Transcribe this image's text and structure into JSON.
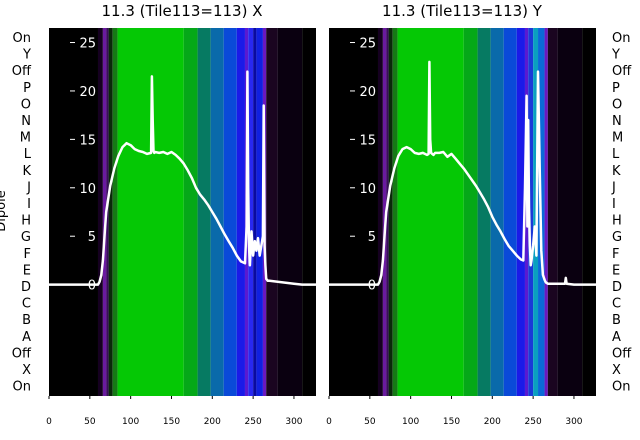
{
  "chart_data": [
    {
      "type": "heatmap",
      "title": "11.3 (Tile113=113) X",
      "ylabel": "Dipole",
      "x_ticks": [
        0,
        50,
        100,
        150,
        200,
        250,
        300
      ],
      "xlim": [
        0,
        327
      ],
      "rows": [
        "On",
        "X",
        "Off",
        "A",
        "B",
        "C",
        "D",
        "E",
        "F",
        "G",
        "H",
        "I",
        "J",
        "K",
        "L",
        "M",
        "N",
        "O",
        "P",
        "Off",
        "Y",
        "On"
      ],
      "overlay": {
        "type": "line",
        "ylim": [
          -11.5,
          26.5
        ],
        "y_ticks": [
          0,
          5,
          10,
          15,
          20,
          25
        ],
        "x": [
          0,
          60,
          62,
          64,
          66,
          68,
          70,
          75,
          80,
          85,
          90,
          95,
          100,
          105,
          110,
          115,
          120,
          125,
          126,
          127,
          128,
          129,
          130,
          135,
          140,
          145,
          150,
          155,
          160,
          165,
          170,
          175,
          180,
          185,
          190,
          195,
          200,
          205,
          210,
          215,
          220,
          225,
          230,
          235,
          240,
          242,
          243,
          244,
          245,
          246,
          248,
          250,
          252,
          254,
          256,
          258,
          260,
          262,
          263,
          264,
          265,
          266,
          268,
          270,
          280,
          290,
          300,
          310,
          327
        ],
        "y": [
          0,
          0,
          0.3,
          1.0,
          2.5,
          5.0,
          7.5,
          10.2,
          12.0,
          13.3,
          14.2,
          14.6,
          14.4,
          14.0,
          13.8,
          13.7,
          13.5,
          13.6,
          21.5,
          17.0,
          13.8,
          13.6,
          13.7,
          13.6,
          13.7,
          13.5,
          13.7,
          13.4,
          13.0,
          12.5,
          11.8,
          11.0,
          10.0,
          9.3,
          8.8,
          8.2,
          7.5,
          6.8,
          6.0,
          5.2,
          4.5,
          3.8,
          3.0,
          2.4,
          2.2,
          6.0,
          22.0,
          10.0,
          4.0,
          2.0,
          5.5,
          3.0,
          4.5,
          3.5,
          4.8,
          3.0,
          4.0,
          5.0,
          18.5,
          4.0,
          2.0,
          0.6,
          0.4,
          0.4,
          0.3,
          0.2,
          0.1,
          0.0,
          0.0
        ]
      },
      "spectrum_bands": [
        {
          "from": 0,
          "to": 60,
          "color": "#000000"
        },
        {
          "from": 60,
          "to": 66,
          "color": "#150020"
        },
        {
          "from": 66,
          "to": 70,
          "color": "#6a1aa0"
        },
        {
          "from": 70,
          "to": 73,
          "color": "#3a0a60"
        },
        {
          "from": 73,
          "to": 78,
          "color": "#0a2a0a"
        },
        {
          "from": 78,
          "to": 84,
          "color": "#157a15"
        },
        {
          "from": 84,
          "to": 165,
          "color": "#05c805"
        },
        {
          "from": 165,
          "to": 182,
          "color": "#05a818"
        },
        {
          "from": 182,
          "to": 198,
          "color": "#067a62"
        },
        {
          "from": 198,
          "to": 214,
          "color": "#0a6aaa"
        },
        {
          "from": 214,
          "to": 230,
          "color": "#0a4ad8"
        },
        {
          "from": 230,
          "to": 240,
          "color": "#1a1ae8"
        },
        {
          "from": 240,
          "to": 244,
          "color": "#5a1ad0"
        },
        {
          "from": 244,
          "to": 250,
          "color": "#2828f0"
        },
        {
          "from": 250,
          "to": 254,
          "color": "#0a0aa0"
        },
        {
          "from": 254,
          "to": 262,
          "color": "#1020e0"
        },
        {
          "from": 262,
          "to": 266,
          "color": "#6a18c0"
        },
        {
          "from": 266,
          "to": 280,
          "color": "#1a0520"
        },
        {
          "from": 280,
          "to": 310,
          "color": "#0a0010"
        },
        {
          "from": 310,
          "to": 327,
          "color": "#000000"
        }
      ]
    },
    {
      "type": "heatmap",
      "title": "11.3 (Tile113=113) Y",
      "x_ticks": [
        0,
        50,
        100,
        150,
        200,
        250,
        300
      ],
      "xlim": [
        0,
        327
      ],
      "rows": [
        "On",
        "X",
        "Off",
        "A",
        "B",
        "C",
        "D",
        "E",
        "F",
        "G",
        "H",
        "I",
        "J",
        "K",
        "L",
        "M",
        "N",
        "O",
        "P",
        "Off",
        "Y",
        "On"
      ],
      "overlay": {
        "type": "line",
        "ylim": [
          -11.5,
          26.5
        ],
        "y_ticks": [
          0,
          5,
          10,
          15,
          20,
          25
        ],
        "x": [
          0,
          60,
          62,
          64,
          66,
          68,
          70,
          75,
          80,
          85,
          90,
          95,
          100,
          105,
          110,
          115,
          120,
          122,
          123,
          124,
          125,
          128,
          130,
          135,
          140,
          145,
          150,
          155,
          160,
          165,
          170,
          175,
          180,
          185,
          190,
          195,
          200,
          205,
          210,
          215,
          220,
          225,
          230,
          235,
          238,
          240,
          242,
          243,
          244,
          245,
          246,
          247,
          248,
          250,
          252,
          254,
          256,
          258,
          260,
          262,
          264,
          265,
          266,
          268,
          270,
          280,
          289,
          290,
          291,
          300,
          310,
          327
        ],
        "y": [
          0,
          0,
          0.3,
          1.0,
          2.5,
          5.0,
          7.5,
          10.2,
          12.0,
          13.3,
          14.0,
          14.2,
          14.0,
          13.6,
          13.5,
          13.6,
          13.4,
          13.5,
          23.0,
          15.0,
          13.6,
          13.4,
          13.6,
          13.6,
          13.7,
          13.2,
          13.5,
          13.0,
          12.5,
          12.0,
          11.4,
          10.8,
          10.2,
          9.5,
          8.8,
          8.0,
          7.0,
          6.2,
          5.5,
          4.7,
          4.0,
          3.5,
          3.0,
          2.6,
          2.5,
          10.0,
          19.5,
          6.0,
          17.0,
          8.0,
          4.0,
          2.0,
          2.5,
          4.0,
          6.0,
          3.0,
          22.0,
          12.0,
          3.5,
          1.0,
          0.5,
          0.3,
          0.2,
          0.1,
          0.1,
          0.1,
          0.1,
          0.7,
          0.1,
          0.0,
          0.0,
          0.0
        ]
      },
      "spectrum_bands": [
        {
          "from": 0,
          "to": 60,
          "color": "#000000"
        },
        {
          "from": 60,
          "to": 66,
          "color": "#150020"
        },
        {
          "from": 66,
          "to": 70,
          "color": "#6a1aa0"
        },
        {
          "from": 70,
          "to": 73,
          "color": "#3a0a60"
        },
        {
          "from": 73,
          "to": 78,
          "color": "#0a2a0a"
        },
        {
          "from": 78,
          "to": 84,
          "color": "#157a15"
        },
        {
          "from": 84,
          "to": 165,
          "color": "#05c805"
        },
        {
          "from": 165,
          "to": 182,
          "color": "#05a818"
        },
        {
          "from": 182,
          "to": 198,
          "color": "#067a62"
        },
        {
          "from": 198,
          "to": 214,
          "color": "#0a6aaa"
        },
        {
          "from": 214,
          "to": 230,
          "color": "#0a4ad8"
        },
        {
          "from": 230,
          "to": 240,
          "color": "#1a1ae8"
        },
        {
          "from": 240,
          "to": 244,
          "color": "#5a1ad0"
        },
        {
          "from": 244,
          "to": 250,
          "color": "#1a3ad8"
        },
        {
          "from": 250,
          "to": 256,
          "color": "#0aa0c0"
        },
        {
          "from": 256,
          "to": 264,
          "color": "#0a6ad8"
        },
        {
          "from": 264,
          "to": 268,
          "color": "#6a18c0"
        },
        {
          "from": 268,
          "to": 280,
          "color": "#1a0520"
        },
        {
          "from": 280,
          "to": 310,
          "color": "#0a0010"
        },
        {
          "from": 310,
          "to": 327,
          "color": "#000000"
        }
      ]
    }
  ],
  "colors": {
    "overlay_line": "#ffffff",
    "axis_text_on_dark": "#ffffff",
    "axis_text_on_light": "#000000",
    "background": "#ffffff"
  }
}
